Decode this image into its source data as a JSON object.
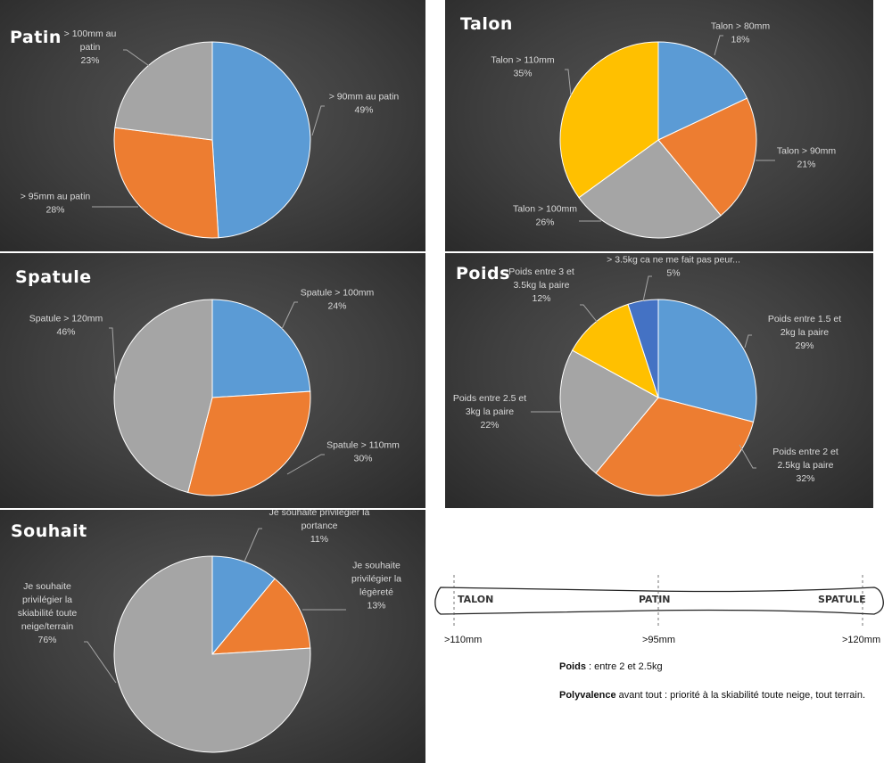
{
  "chart_data": [
    {
      "id": "patin",
      "type": "pie",
      "title": "Patin",
      "colors": [
        "#5b9bd5",
        "#ed7d31",
        "#a5a5a5"
      ],
      "slices": [
        {
          "label": "> 90mm au patin",
          "lines": [
            "> 90mm au patin"
          ],
          "value": 49,
          "pct": "49%"
        },
        {
          "label": "> 95mm au patin",
          "lines": [
            "> 95mm au patin"
          ],
          "value": 28,
          "pct": "28%"
        },
        {
          "label": "> 100mm au patin",
          "lines": [
            "> 100mm au",
            "patin"
          ],
          "value": 23,
          "pct": "23%"
        }
      ]
    },
    {
      "id": "talon",
      "type": "pie",
      "title": "Talon",
      "colors": [
        "#5b9bd5",
        "#ed7d31",
        "#a5a5a5",
        "#ffc000"
      ],
      "slices": [
        {
          "label": "Talon > 80mm",
          "lines": [
            "Talon > 80mm"
          ],
          "value": 18,
          "pct": "18%"
        },
        {
          "label": "Talon > 90mm",
          "lines": [
            "Talon > 90mm"
          ],
          "value": 21,
          "pct": "21%"
        },
        {
          "label": "Talon > 100mm",
          "lines": [
            "Talon > 100mm"
          ],
          "value": 26,
          "pct": "26%"
        },
        {
          "label": "Talon > 110mm",
          "lines": [
            "Talon > 110mm"
          ],
          "value": 35,
          "pct": "35%"
        }
      ]
    },
    {
      "id": "spatule",
      "type": "pie",
      "title": "Spatule",
      "colors": [
        "#5b9bd5",
        "#ed7d31",
        "#a5a5a5"
      ],
      "slices": [
        {
          "label": "Spatule > 100mm",
          "lines": [
            "Spatule > 100mm"
          ],
          "value": 24,
          "pct": "24%"
        },
        {
          "label": "Spatule > 110mm",
          "lines": [
            "Spatule > 110mm"
          ],
          "value": 30,
          "pct": "30%"
        },
        {
          "label": "Spatule > 120mm",
          "lines": [
            "Spatule > 120mm"
          ],
          "value": 46,
          "pct": "46%"
        }
      ]
    },
    {
      "id": "poids",
      "type": "pie",
      "title": "Poids",
      "colors": [
        "#5b9bd5",
        "#ed7d31",
        "#a5a5a5",
        "#ffc000",
        "#4472c4"
      ],
      "slices": [
        {
          "label": "Poids entre 1.5 et 2kg la paire",
          "lines": [
            "Poids entre 1.5 et",
            "2kg la paire"
          ],
          "value": 29,
          "pct": "29%"
        },
        {
          "label": "Poids entre 2 et 2.5kg la paire",
          "lines": [
            "Poids entre 2 et",
            "2.5kg la paire"
          ],
          "value": 32,
          "pct": "32%"
        },
        {
          "label": "Poids entre 2.5 et 3kg la paire",
          "lines": [
            "Poids entre 2.5 et",
            "3kg la paire"
          ],
          "value": 22,
          "pct": "22%"
        },
        {
          "label": "Poids entre 3 et 3.5kg la paire",
          "lines": [
            "Poids entre 3 et",
            "3.5kg la paire"
          ],
          "value": 12,
          "pct": "12%"
        },
        {
          "label": "> 3.5kg ca ne me fait pas peur...",
          "lines": [
            "> 3.5kg ca ne me fait pas peur..."
          ],
          "value": 5,
          "pct": "5%"
        }
      ]
    },
    {
      "id": "souhait",
      "type": "pie",
      "title": "Souhait",
      "colors": [
        "#5b9bd5",
        "#ed7d31",
        "#a5a5a5"
      ],
      "slices": [
        {
          "label": "Je souhaite privilégier la portance",
          "lines": [
            "Je souhaite privilégier la",
            "portance"
          ],
          "value": 11,
          "pct": "11%"
        },
        {
          "label": "Je souhaite privilégier la légèreté",
          "lines": [
            "Je souhaite",
            "privilégier la",
            "légèreté"
          ],
          "value": 13,
          "pct": "13%"
        },
        {
          "label": "Je souhaite privilégier la skiabilité toute neige/terrain",
          "lines": [
            "Je souhaite",
            "privilégier la",
            "skiabilité toute",
            "neige/terrain"
          ],
          "value": 76,
          "pct": "76%"
        }
      ]
    }
  ],
  "ski_diagram": {
    "talon_label": "TALON",
    "patin_label": "PATIN",
    "spatule_label": "SPATULE",
    "talon_measure": ">110mm",
    "patin_measure": ">95mm",
    "spatule_measure": ">120mm"
  },
  "summary": {
    "poids_label": "Poids",
    "poids_text": " : entre 2 et 2.5kg",
    "polyvalence_label": "Polyvalence",
    "polyvalence_text": " avant tout : priorité à la skiabilité toute neige, tout terrain."
  }
}
